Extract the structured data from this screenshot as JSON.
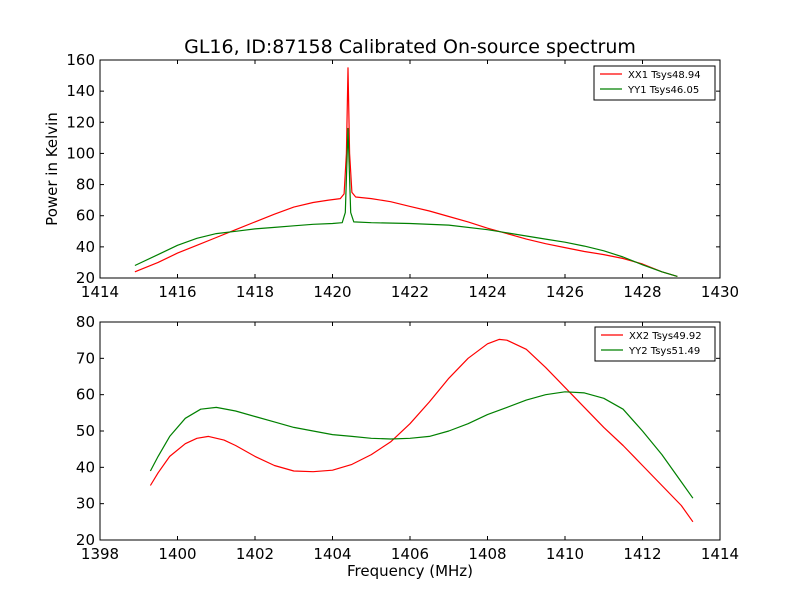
{
  "title": "GL16, ID:87158 Calibrated On-source spectrum",
  "chart_data": [
    {
      "type": "line",
      "ylabel": "Power in Kelvin",
      "xlim": [
        1414,
        1430
      ],
      "ylim": [
        20,
        160
      ],
      "xticks": [
        1414,
        1416,
        1418,
        1420,
        1422,
        1424,
        1426,
        1428,
        1430
      ],
      "yticks": [
        20,
        40,
        60,
        80,
        100,
        120,
        140,
        160
      ],
      "legend_position": "top-right",
      "series": [
        {
          "name": "XX1 Tsys48.94",
          "color": "#ff0000",
          "x": [
            1414.9,
            1415.5,
            1416.0,
            1416.5,
            1417.0,
            1417.5,
            1418.0,
            1418.5,
            1419.0,
            1419.5,
            1419.9,
            1420.2,
            1420.3,
            1420.36,
            1420.4,
            1420.44,
            1420.5,
            1420.6,
            1421.0,
            1421.5,
            1422.0,
            1422.5,
            1423.0,
            1423.5,
            1424.0,
            1424.5,
            1425.0,
            1425.5,
            1426.0,
            1426.5,
            1427.0,
            1427.5,
            1428.0,
            1428.5,
            1428.9
          ],
          "y": [
            24,
            30,
            36,
            41,
            46,
            51,
            56,
            61,
            65.5,
            68.5,
            70,
            71,
            74,
            100,
            155,
            100,
            75,
            72,
            71,
            69,
            66,
            63,
            59.5,
            56,
            52,
            48.5,
            45,
            42,
            39.5,
            37,
            35,
            32.5,
            29,
            24,
            21
          ]
        },
        {
          "name": "YY1 Tsys46.05",
          "color": "#008000",
          "x": [
            1414.9,
            1415.5,
            1416.0,
            1416.5,
            1417.0,
            1417.5,
            1418.0,
            1418.5,
            1419.0,
            1419.5,
            1420.0,
            1420.25,
            1420.33,
            1420.4,
            1420.47,
            1420.55,
            1421.0,
            1422.0,
            1423.0,
            1424.0,
            1424.5,
            1425.0,
            1425.5,
            1426.0,
            1426.5,
            1427.0,
            1427.5,
            1428.0,
            1428.5,
            1428.9
          ],
          "y": [
            28,
            35,
            41,
            45.5,
            48.5,
            50,
            51.5,
            52.5,
            53.5,
            54.5,
            55,
            55.5,
            62,
            116,
            62,
            56,
            55.5,
            55,
            54,
            51,
            49,
            47,
            45,
            43,
            40.5,
            37.5,
            33.5,
            28.5,
            24,
            21
          ]
        }
      ]
    },
    {
      "type": "line",
      "xlabel": "Frequency (MHz)",
      "xlim": [
        1398,
        1414
      ],
      "ylim": [
        20,
        80
      ],
      "xticks": [
        1398,
        1400,
        1402,
        1404,
        1406,
        1408,
        1410,
        1412,
        1414
      ],
      "yticks": [
        20,
        30,
        40,
        50,
        60,
        70,
        80
      ],
      "legend_position": "top-right",
      "series": [
        {
          "name": "XX2 Tsys49.92",
          "color": "#ff0000",
          "x": [
            1399.3,
            1399.5,
            1399.8,
            1400.2,
            1400.5,
            1400.8,
            1401.2,
            1401.5,
            1402.0,
            1402.5,
            1403.0,
            1403.5,
            1404.0,
            1404.5,
            1405.0,
            1405.5,
            1406.0,
            1406.5,
            1407.0,
            1407.5,
            1408.0,
            1408.3,
            1408.5,
            1409.0,
            1409.5,
            1410.0,
            1410.5,
            1411.0,
            1411.5,
            1412.0,
            1412.5,
            1413.0,
            1413.3
          ],
          "y": [
            35,
            38.5,
            43,
            46.5,
            48,
            48.5,
            47.5,
            46,
            43,
            40.5,
            39,
            38.8,
            39.2,
            40.8,
            43.5,
            47,
            52,
            58,
            64.5,
            70,
            74,
            75.2,
            75,
            72.5,
            67.5,
            62,
            56.5,
            51,
            46,
            40.5,
            35,
            29.5,
            25
          ]
        },
        {
          "name": "YY2 Tsys51.49",
          "color": "#008000",
          "x": [
            1399.3,
            1399.5,
            1399.8,
            1400.2,
            1400.6,
            1401.0,
            1401.5,
            1402.0,
            1402.5,
            1403.0,
            1403.5,
            1404.0,
            1404.5,
            1405.0,
            1405.5,
            1406.0,
            1406.5,
            1407.0,
            1407.5,
            1408.0,
            1408.5,
            1409.0,
            1409.5,
            1410.0,
            1410.5,
            1411.0,
            1411.5,
            1412.0,
            1412.5,
            1413.0,
            1413.3
          ],
          "y": [
            39,
            43,
            48.5,
            53.5,
            56,
            56.5,
            55.5,
            54,
            52.5,
            51,
            50,
            49,
            48.5,
            48,
            47.8,
            48,
            48.5,
            50,
            52,
            54.5,
            56.5,
            58.5,
            60,
            60.8,
            60.5,
            59,
            56,
            50,
            43.5,
            36,
            31.5
          ]
        }
      ]
    }
  ]
}
